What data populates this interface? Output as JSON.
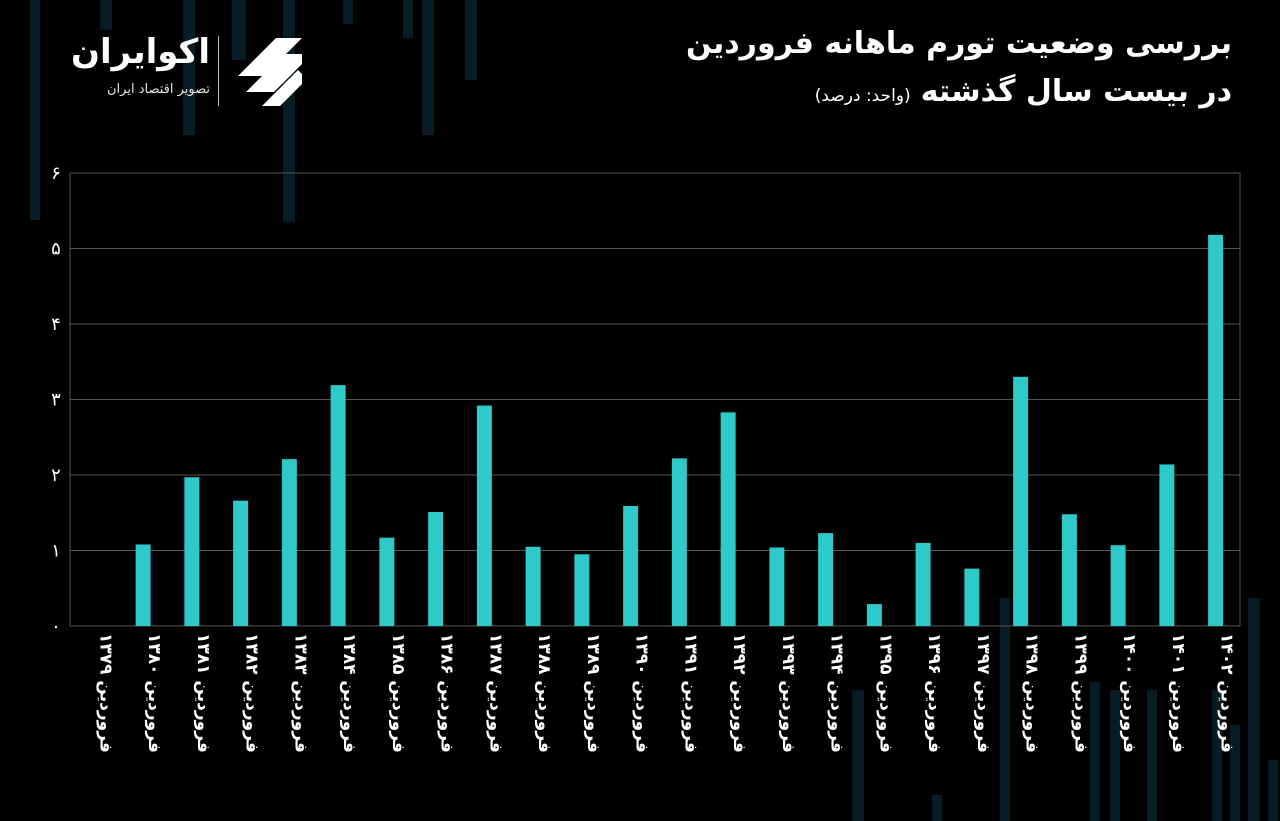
{
  "header": {
    "title_line1": "بررسی وضعیت تورم ماهانه فروردین",
    "title_line2": "در بیست سال گذشته",
    "unit": "(واحد: درصد)"
  },
  "logo": {
    "name": "اکوایران",
    "tagline": "تصویر اقتصاد ایران"
  },
  "colors": {
    "bar": "#2ec9c9",
    "grid": "#555555",
    "background": "#000000"
  },
  "chart_data": {
    "type": "bar",
    "title": "بررسی وضعیت تورم ماهانه فروردین در بیست سال گذشته",
    "ylabel": "(واحد: درصد)",
    "ylim": [
      0,
      6
    ],
    "yticks": [
      "۰",
      "۱",
      "۲",
      "۳",
      "۴",
      "۵",
      "۶"
    ],
    "grid": true,
    "categories": [
      "فروردین ۱۳۷۹",
      "فروردین ۱۳۸۰",
      "فروردین ۱۳۸۱",
      "فروردین ۱۳۸۲",
      "فروردین ۱۳۸۳",
      "فروردین ۱۳۸۴",
      "فروردین ۱۳۸۵",
      "فروردین ۱۳۸۶",
      "فروردین ۱۳۸۷",
      "فروردین ۱۳۸۸",
      "فروردین ۱۳۸۹",
      "فروردین ۱۳۹۰",
      "فروردین ۱۳۹۱",
      "فروردین ۱۳۹۲",
      "فروردین ۱۳۹۳",
      "فروردین ۱۳۹۴",
      "فروردین ۱۳۹۵",
      "فروردین ۱۳۹۶",
      "فروردین ۱۳۹۷",
      "فروردین ۱۳۹۸",
      "فروردین ۱۳۹۹",
      "فروردین ۱۴۰۰",
      "فروردین ۱۴۰۱",
      "فروردین ۱۴۰۲"
    ],
    "values": [
      0,
      1.08,
      1.97,
      1.66,
      2.21,
      3.19,
      1.17,
      1.51,
      2.92,
      1.05,
      0.95,
      1.59,
      2.22,
      2.83,
      1.04,
      1.23,
      0.29,
      1.1,
      0.76,
      3.3,
      1.48,
      1.07,
      2.14,
      5.18
    ]
  }
}
